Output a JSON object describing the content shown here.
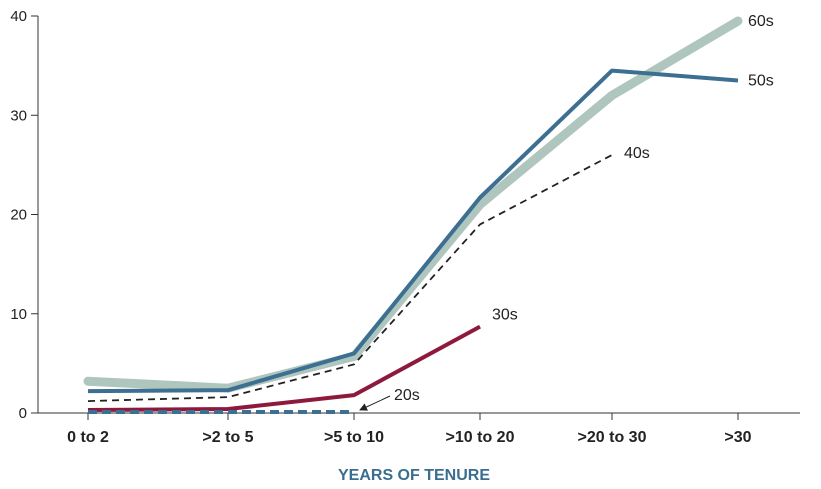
{
  "chart_data": {
    "type": "line",
    "categories": [
      "0 to 2",
      ">2 to 5",
      ">5 to 10",
      ">10 to 20",
      ">20 to 30",
      ">30"
    ],
    "xlabel": "YEARS OF TENURE",
    "ylabel": "",
    "ylim": [
      0,
      40
    ],
    "yticks": [
      0,
      10,
      20,
      30,
      40
    ],
    "grid": false,
    "legend": "labels at line ends",
    "series": [
      {
        "name": "60s",
        "values": [
          3.2,
          2.5,
          5.7,
          21,
          32,
          39.5
        ],
        "color": "#aec6bd",
        "style": "thick-solid"
      },
      {
        "name": "50s",
        "values": [
          2.2,
          2.3,
          6,
          21.7,
          34.5,
          33.5
        ],
        "color": "#3d6f93",
        "style": "solid"
      },
      {
        "name": "40s",
        "values": [
          1.2,
          1.6,
          4.9,
          19,
          26,
          null
        ],
        "color": "#222222",
        "style": "dashed"
      },
      {
        "name": "30s",
        "values": [
          0.3,
          0.4,
          1.8,
          8.7,
          null,
          null
        ],
        "color": "#8d1a3c",
        "style": "solid"
      },
      {
        "name": "20s",
        "values": [
          0.1,
          0.1,
          0.1,
          null,
          null,
          null
        ],
        "color": "#3d6f93",
        "style": "dashed"
      }
    ]
  }
}
